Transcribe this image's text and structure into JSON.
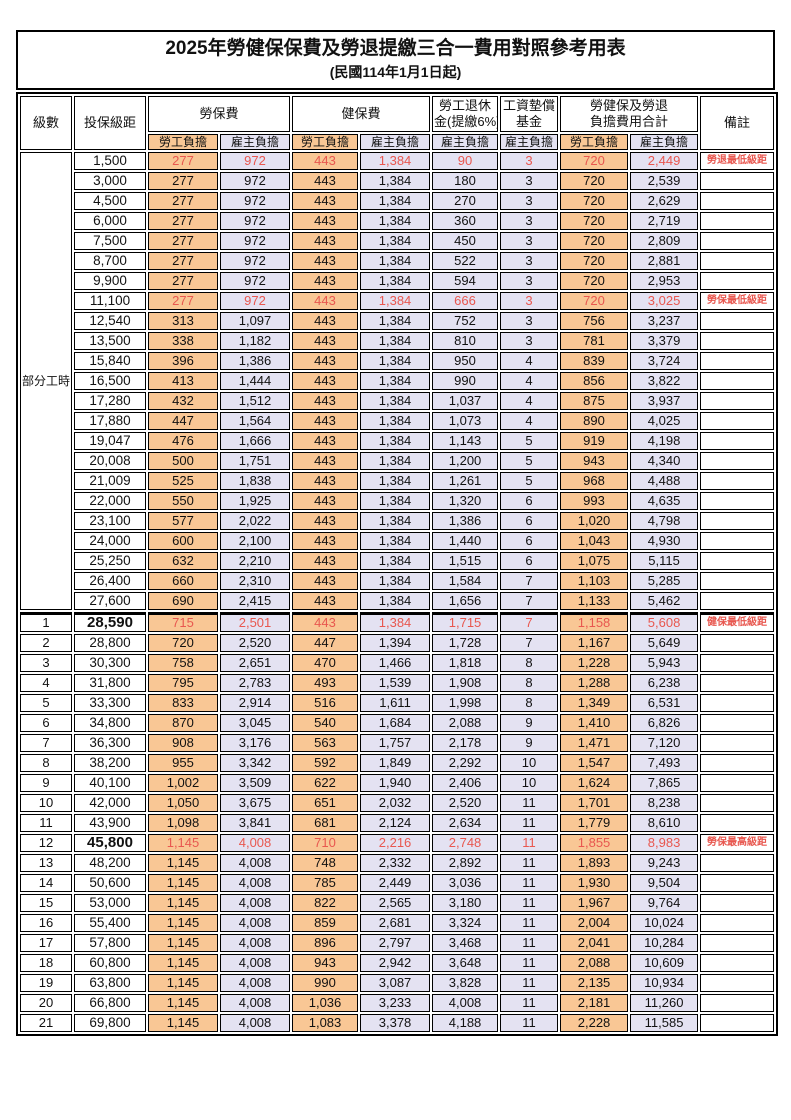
{
  "title": "2025年勞健保保費及勞退提繳三合一費用對照參考用表",
  "subtitle": "(民國114年1月1日起)",
  "colors": {
    "employee_burden_bg": "#F9C795",
    "employer_burden_bg": "#E4E2F2",
    "highlight_red": "#E8574F",
    "border": "#000000"
  },
  "header": {
    "level": "級數",
    "salary": "投保級距",
    "labor_ins": "勞保費",
    "health_ins": "健保費",
    "pension_line1": "勞工退休",
    "pension_line2": "金(提繳6%)",
    "wage_fund_line1": "工資墊償",
    "wage_fund_line2": "基金",
    "total_line1": "勞健保及勞退",
    "total_line2": "負擔費用合計",
    "employee": "勞工負擔",
    "employer": "雇主負擔",
    "remark": "備註"
  },
  "part_time_label": "部分工時",
  "rows": [
    {
      "level": "",
      "salary": "1,500",
      "li_emp": "277",
      "li_er": "972",
      "hi_emp": "443",
      "hi_er": "1,384",
      "pension": "90",
      "wage": "3",
      "tot_emp": "720",
      "tot_er": "2,449",
      "remark": "勞退最低級距",
      "red": true
    },
    {
      "level": "",
      "salary": "3,000",
      "li_emp": "277",
      "li_er": "972",
      "hi_emp": "443",
      "hi_er": "1,384",
      "pension": "180",
      "wage": "3",
      "tot_emp": "720",
      "tot_er": "2,539",
      "remark": ""
    },
    {
      "level": "",
      "salary": "4,500",
      "li_emp": "277",
      "li_er": "972",
      "hi_emp": "443",
      "hi_er": "1,384",
      "pension": "270",
      "wage": "3",
      "tot_emp": "720",
      "tot_er": "2,629",
      "remark": ""
    },
    {
      "level": "",
      "salary": "6,000",
      "li_emp": "277",
      "li_er": "972",
      "hi_emp": "443",
      "hi_er": "1,384",
      "pension": "360",
      "wage": "3",
      "tot_emp": "720",
      "tot_er": "2,719",
      "remark": ""
    },
    {
      "level": "",
      "salary": "7,500",
      "li_emp": "277",
      "li_er": "972",
      "hi_emp": "443",
      "hi_er": "1,384",
      "pension": "450",
      "wage": "3",
      "tot_emp": "720",
      "tot_er": "2,809",
      "remark": ""
    },
    {
      "level": "",
      "salary": "8,700",
      "li_emp": "277",
      "li_er": "972",
      "hi_emp": "443",
      "hi_er": "1,384",
      "pension": "522",
      "wage": "3",
      "tot_emp": "720",
      "tot_er": "2,881",
      "remark": ""
    },
    {
      "level": "",
      "salary": "9,900",
      "li_emp": "277",
      "li_er": "972",
      "hi_emp": "443",
      "hi_er": "1,384",
      "pension": "594",
      "wage": "3",
      "tot_emp": "720",
      "tot_er": "2,953",
      "remark": ""
    },
    {
      "level": "",
      "salary": "11,100",
      "li_emp": "277",
      "li_er": "972",
      "hi_emp": "443",
      "hi_er": "1,384",
      "pension": "666",
      "wage": "3",
      "tot_emp": "720",
      "tot_er": "3,025",
      "remark": "勞保最低級距",
      "red": true
    },
    {
      "level": "",
      "salary": "12,540",
      "li_emp": "313",
      "li_er": "1,097",
      "hi_emp": "443",
      "hi_er": "1,384",
      "pension": "752",
      "wage": "3",
      "tot_emp": "756",
      "tot_er": "3,237",
      "remark": ""
    },
    {
      "level": "",
      "salary": "13,500",
      "li_emp": "338",
      "li_er": "1,182",
      "hi_emp": "443",
      "hi_er": "1,384",
      "pension": "810",
      "wage": "3",
      "tot_emp": "781",
      "tot_er": "3,379",
      "remark": ""
    },
    {
      "level": "",
      "salary": "15,840",
      "li_emp": "396",
      "li_er": "1,386",
      "hi_emp": "443",
      "hi_er": "1,384",
      "pension": "950",
      "wage": "4",
      "tot_emp": "839",
      "tot_er": "3,724",
      "remark": ""
    },
    {
      "level": "",
      "salary": "16,500",
      "li_emp": "413",
      "li_er": "1,444",
      "hi_emp": "443",
      "hi_er": "1,384",
      "pension": "990",
      "wage": "4",
      "tot_emp": "856",
      "tot_er": "3,822",
      "remark": ""
    },
    {
      "level": "",
      "salary": "17,280",
      "li_emp": "432",
      "li_er": "1,512",
      "hi_emp": "443",
      "hi_er": "1,384",
      "pension": "1,037",
      "wage": "4",
      "tot_emp": "875",
      "tot_er": "3,937",
      "remark": ""
    },
    {
      "level": "",
      "salary": "17,880",
      "li_emp": "447",
      "li_er": "1,564",
      "hi_emp": "443",
      "hi_er": "1,384",
      "pension": "1,073",
      "wage": "4",
      "tot_emp": "890",
      "tot_er": "4,025",
      "remark": ""
    },
    {
      "level": "",
      "salary": "19,047",
      "li_emp": "476",
      "li_er": "1,666",
      "hi_emp": "443",
      "hi_er": "1,384",
      "pension": "1,143",
      "wage": "5",
      "tot_emp": "919",
      "tot_er": "4,198",
      "remark": ""
    },
    {
      "level": "",
      "salary": "20,008",
      "li_emp": "500",
      "li_er": "1,751",
      "hi_emp": "443",
      "hi_er": "1,384",
      "pension": "1,200",
      "wage": "5",
      "tot_emp": "943",
      "tot_er": "4,340",
      "remark": ""
    },
    {
      "level": "",
      "salary": "21,009",
      "li_emp": "525",
      "li_er": "1,838",
      "hi_emp": "443",
      "hi_er": "1,384",
      "pension": "1,261",
      "wage": "5",
      "tot_emp": "968",
      "tot_er": "4,488",
      "remark": ""
    },
    {
      "level": "",
      "salary": "22,000",
      "li_emp": "550",
      "li_er": "1,925",
      "hi_emp": "443",
      "hi_er": "1,384",
      "pension": "1,320",
      "wage": "6",
      "tot_emp": "993",
      "tot_er": "4,635",
      "remark": ""
    },
    {
      "level": "",
      "salary": "23,100",
      "li_emp": "577",
      "li_er": "2,022",
      "hi_emp": "443",
      "hi_er": "1,384",
      "pension": "1,386",
      "wage": "6",
      "tot_emp": "1,020",
      "tot_er": "4,798",
      "remark": ""
    },
    {
      "level": "",
      "salary": "24,000",
      "li_emp": "600",
      "li_er": "2,100",
      "hi_emp": "443",
      "hi_er": "1,384",
      "pension": "1,440",
      "wage": "6",
      "tot_emp": "1,043",
      "tot_er": "4,930",
      "remark": ""
    },
    {
      "level": "",
      "salary": "25,250",
      "li_emp": "632",
      "li_er": "2,210",
      "hi_emp": "443",
      "hi_er": "1,384",
      "pension": "1,515",
      "wage": "6",
      "tot_emp": "1,075",
      "tot_er": "5,115",
      "remark": ""
    },
    {
      "level": "",
      "salary": "26,400",
      "li_emp": "660",
      "li_er": "2,310",
      "hi_emp": "443",
      "hi_er": "1,384",
      "pension": "1,584",
      "wage": "7",
      "tot_emp": "1,103",
      "tot_er": "5,285",
      "remark": ""
    },
    {
      "level": "",
      "salary": "27,600",
      "li_emp": "690",
      "li_er": "2,415",
      "hi_emp": "443",
      "hi_er": "1,384",
      "pension": "1,656",
      "wage": "7",
      "tot_emp": "1,133",
      "tot_er": "5,462",
      "remark": ""
    },
    {
      "level": "1",
      "salary": "28,590",
      "li_emp": "715",
      "li_er": "2,501",
      "hi_emp": "443",
      "hi_er": "1,384",
      "pension": "1,715",
      "wage": "7",
      "tot_emp": "1,158",
      "tot_er": "5,608",
      "remark": "健保最低級距",
      "red": true,
      "salary_bold": true
    },
    {
      "level": "2",
      "salary": "28,800",
      "li_emp": "720",
      "li_er": "2,520",
      "hi_emp": "447",
      "hi_er": "1,394",
      "pension": "1,728",
      "wage": "7",
      "tot_emp": "1,167",
      "tot_er": "5,649",
      "remark": ""
    },
    {
      "level": "3",
      "salary": "30,300",
      "li_emp": "758",
      "li_er": "2,651",
      "hi_emp": "470",
      "hi_er": "1,466",
      "pension": "1,818",
      "wage": "8",
      "tot_emp": "1,228",
      "tot_er": "5,943",
      "remark": ""
    },
    {
      "level": "4",
      "salary": "31,800",
      "li_emp": "795",
      "li_er": "2,783",
      "hi_emp": "493",
      "hi_er": "1,539",
      "pension": "1,908",
      "wage": "8",
      "tot_emp": "1,288",
      "tot_er": "6,238",
      "remark": ""
    },
    {
      "level": "5",
      "salary": "33,300",
      "li_emp": "833",
      "li_er": "2,914",
      "hi_emp": "516",
      "hi_er": "1,611",
      "pension": "1,998",
      "wage": "8",
      "tot_emp": "1,349",
      "tot_er": "6,531",
      "remark": ""
    },
    {
      "level": "6",
      "salary": "34,800",
      "li_emp": "870",
      "li_er": "3,045",
      "hi_emp": "540",
      "hi_er": "1,684",
      "pension": "2,088",
      "wage": "9",
      "tot_emp": "1,410",
      "tot_er": "6,826",
      "remark": ""
    },
    {
      "level": "7",
      "salary": "36,300",
      "li_emp": "908",
      "li_er": "3,176",
      "hi_emp": "563",
      "hi_er": "1,757",
      "pension": "2,178",
      "wage": "9",
      "tot_emp": "1,471",
      "tot_er": "7,120",
      "remark": ""
    },
    {
      "level": "8",
      "salary": "38,200",
      "li_emp": "955",
      "li_er": "3,342",
      "hi_emp": "592",
      "hi_er": "1,849",
      "pension": "2,292",
      "wage": "10",
      "tot_emp": "1,547",
      "tot_er": "7,493",
      "remark": ""
    },
    {
      "level": "9",
      "salary": "40,100",
      "li_emp": "1,002",
      "li_er": "3,509",
      "hi_emp": "622",
      "hi_er": "1,940",
      "pension": "2,406",
      "wage": "10",
      "tot_emp": "1,624",
      "tot_er": "7,865",
      "remark": ""
    },
    {
      "level": "10",
      "salary": "42,000",
      "li_emp": "1,050",
      "li_er": "3,675",
      "hi_emp": "651",
      "hi_er": "2,032",
      "pension": "2,520",
      "wage": "11",
      "tot_emp": "1,701",
      "tot_er": "8,238",
      "remark": ""
    },
    {
      "level": "11",
      "salary": "43,900",
      "li_emp": "1,098",
      "li_er": "3,841",
      "hi_emp": "681",
      "hi_er": "2,124",
      "pension": "2,634",
      "wage": "11",
      "tot_emp": "1,779",
      "tot_er": "8,610",
      "remark": ""
    },
    {
      "level": "12",
      "salary": "45,800",
      "li_emp": "1,145",
      "li_er": "4,008",
      "hi_emp": "710",
      "hi_er": "2,216",
      "pension": "2,748",
      "wage": "11",
      "tot_emp": "1,855",
      "tot_er": "8,983",
      "remark": "勞保最高級距",
      "red": true,
      "salary_bold": true
    },
    {
      "level": "13",
      "salary": "48,200",
      "li_emp": "1,145",
      "li_er": "4,008",
      "hi_emp": "748",
      "hi_er": "2,332",
      "pension": "2,892",
      "wage": "11",
      "tot_emp": "1,893",
      "tot_er": "9,243",
      "remark": ""
    },
    {
      "level": "14",
      "salary": "50,600",
      "li_emp": "1,145",
      "li_er": "4,008",
      "hi_emp": "785",
      "hi_er": "2,449",
      "pension": "3,036",
      "wage": "11",
      "tot_emp": "1,930",
      "tot_er": "9,504",
      "remark": ""
    },
    {
      "level": "15",
      "salary": "53,000",
      "li_emp": "1,145",
      "li_er": "4,008",
      "hi_emp": "822",
      "hi_er": "2,565",
      "pension": "3,180",
      "wage": "11",
      "tot_emp": "1,967",
      "tot_er": "9,764",
      "remark": ""
    },
    {
      "level": "16",
      "salary": "55,400",
      "li_emp": "1,145",
      "li_er": "4,008",
      "hi_emp": "859",
      "hi_er": "2,681",
      "pension": "3,324",
      "wage": "11",
      "tot_emp": "2,004",
      "tot_er": "10,024",
      "remark": ""
    },
    {
      "level": "17",
      "salary": "57,800",
      "li_emp": "1,145",
      "li_er": "4,008",
      "hi_emp": "896",
      "hi_er": "2,797",
      "pension": "3,468",
      "wage": "11",
      "tot_emp": "2,041",
      "tot_er": "10,284",
      "remark": ""
    },
    {
      "level": "18",
      "salary": "60,800",
      "li_emp": "1,145",
      "li_er": "4,008",
      "hi_emp": "943",
      "hi_er": "2,942",
      "pension": "3,648",
      "wage": "11",
      "tot_emp": "2,088",
      "tot_er": "10,609",
      "remark": ""
    },
    {
      "level": "19",
      "salary": "63,800",
      "li_emp": "1,145",
      "li_er": "4,008",
      "hi_emp": "990",
      "hi_er": "3,087",
      "pension": "3,828",
      "wage": "11",
      "tot_emp": "2,135",
      "tot_er": "10,934",
      "remark": ""
    },
    {
      "level": "20",
      "salary": "66,800",
      "li_emp": "1,145",
      "li_er": "4,008",
      "hi_emp": "1,036",
      "hi_er": "3,233",
      "pension": "4,008",
      "wage": "11",
      "tot_emp": "2,181",
      "tot_er": "11,260",
      "remark": ""
    },
    {
      "level": "21",
      "salary": "69,800",
      "li_emp": "1,145",
      "li_er": "4,008",
      "hi_emp": "1,083",
      "hi_er": "3,378",
      "pension": "4,188",
      "wage": "11",
      "tot_emp": "2,228",
      "tot_er": "11,585",
      "remark": ""
    }
  ]
}
